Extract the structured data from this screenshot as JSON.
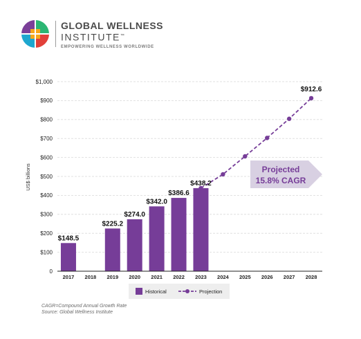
{
  "logo": {
    "line1": "GLOBAL WELLNESS",
    "line2": "INSTITUTE",
    "trademark": "™",
    "tagline": "EMPOWERING WELLNESS WORLDWIDE",
    "colors": [
      "#7b3f98",
      "#2bb673",
      "#1ea7cf",
      "#e2403a",
      "#f7a81b"
    ]
  },
  "chart_data": {
    "type": "bar",
    "ylabel": "US$ billions",
    "ylim": [
      0,
      1000
    ],
    "yticks": [
      0,
      100,
      200,
      300,
      400,
      500,
      600,
      700,
      800,
      900,
      1000
    ],
    "ytick_labels": [
      "0",
      "$100",
      "$200",
      "$300",
      "$400",
      "$500",
      "$600",
      "$700",
      "$800",
      "$900",
      "$1,000"
    ],
    "categories": [
      "2017",
      "2018",
      "2019",
      "2020",
      "2021",
      "2022",
      "2023",
      "2024",
      "2025",
      "2026",
      "2027",
      "2028"
    ],
    "grid": true,
    "series": [
      {
        "name": "Historical",
        "kind": "bar",
        "color": "#763d98",
        "points": [
          {
            "x": "2017",
            "y": 148.5,
            "label": "$148.5"
          },
          {
            "x": "2019",
            "y": 225.2,
            "label": "$225.2"
          },
          {
            "x": "2020",
            "y": 274.0,
            "label": "$274.0"
          },
          {
            "x": "2021",
            "y": 342.0,
            "label": "$342.0"
          },
          {
            "x": "2022",
            "y": 386.6,
            "label": "$386.6"
          },
          {
            "x": "2023",
            "y": 438.2,
            "label": "$438.2"
          }
        ]
      },
      {
        "name": "Projection",
        "kind": "dashed-line",
        "color": "#763d98",
        "points": [
          {
            "x": "2023",
            "y": 438.2
          },
          {
            "x": "2024",
            "y": 511
          },
          {
            "x": "2025",
            "y": 606
          },
          {
            "x": "2026",
            "y": 703
          },
          {
            "x": "2027",
            "y": 804
          },
          {
            "x": "2028",
            "y": 912.6,
            "label": "$912.6"
          }
        ]
      }
    ],
    "annotation": {
      "line1": "Projected",
      "line2": "15.8% CAGR",
      "fill": "#d8d0e2",
      "text_color": "#763d98"
    },
    "legend": {
      "placement": "bottom-center",
      "background": "#eeeeee"
    },
    "notes": [
      "CAGR=Compound Annual Growth Rate",
      "Source: Global Wellness Institute"
    ]
  }
}
